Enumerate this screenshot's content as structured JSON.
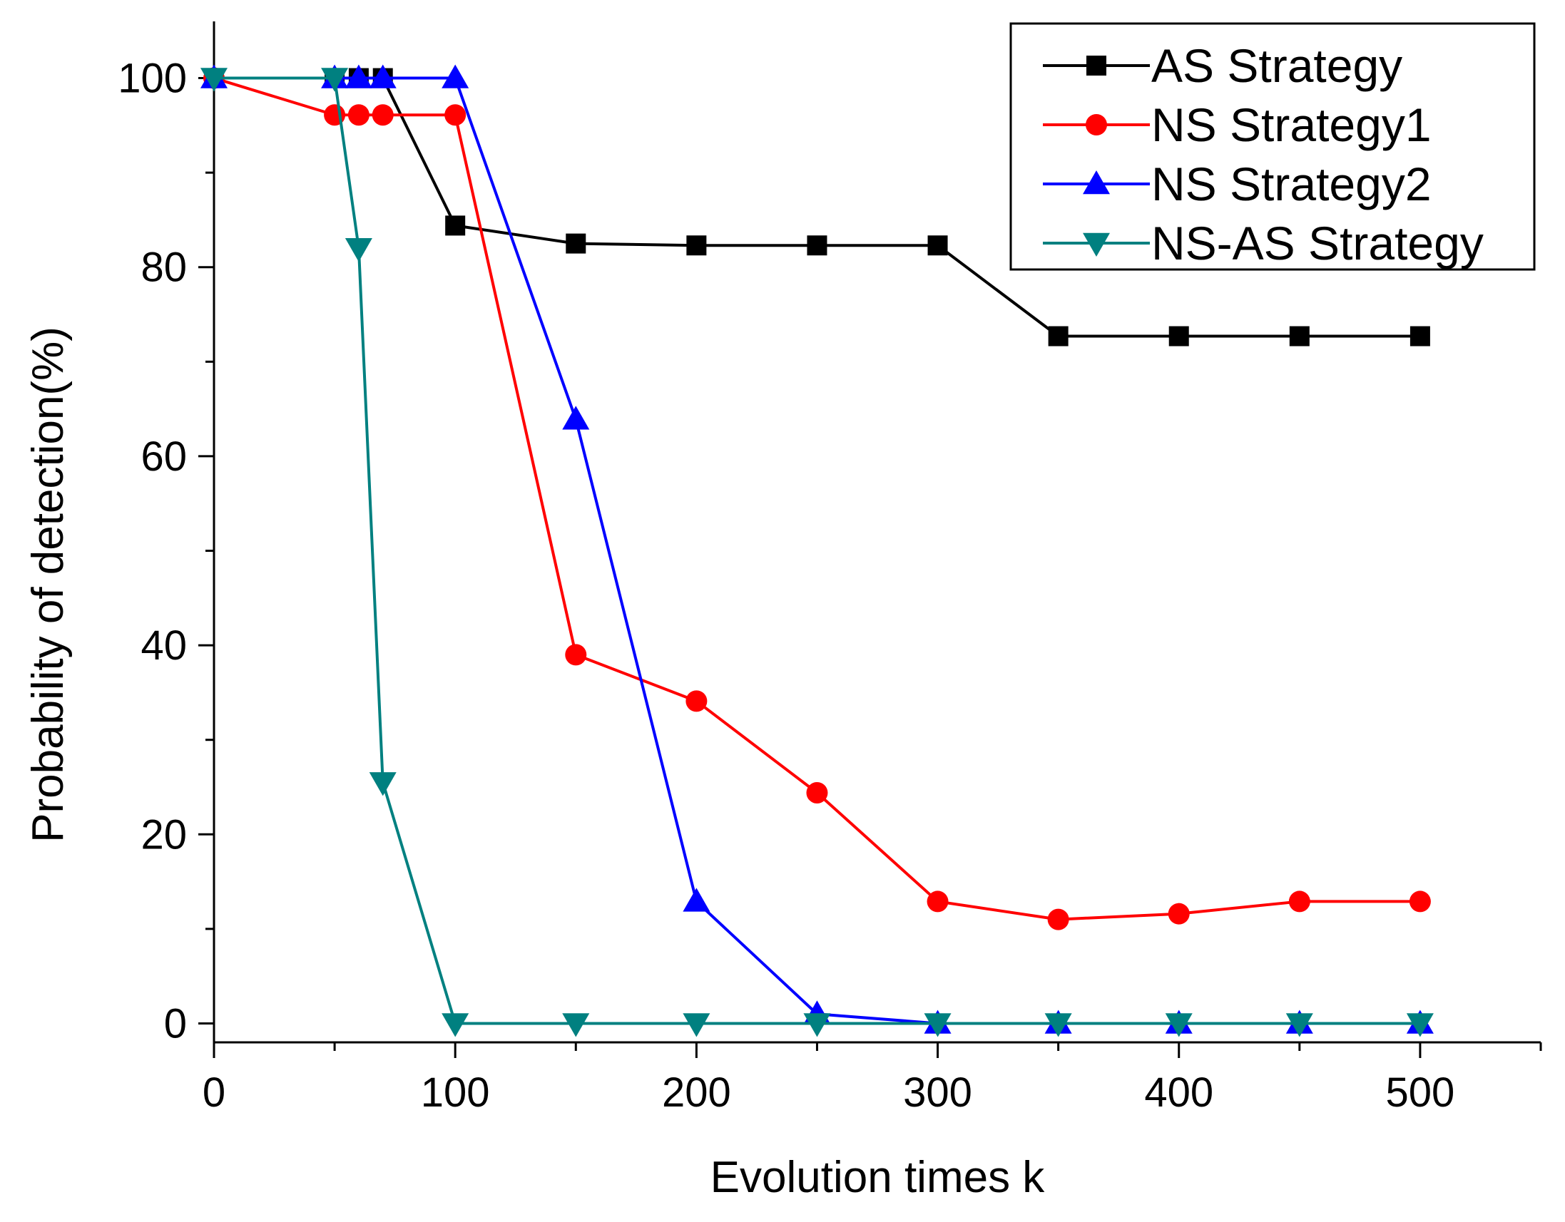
{
  "chart_data": {
    "type": "line",
    "title": "",
    "xlabel": "Evolution times k",
    "ylabel": "Probability of detection(%)",
    "xlim": [
      0,
      550
    ],
    "ylim": [
      -2,
      106
    ],
    "xticks": [
      0,
      100,
      200,
      300,
      400,
      500
    ],
    "yticks": [
      0,
      20,
      40,
      60,
      80,
      100
    ],
    "legend_position": "top-right",
    "series": [
      {
        "name": "AS Strategy",
        "color": "#000000",
        "marker": "square",
        "x": [
          0,
          50,
          60,
          70,
          100,
          150,
          200,
          250,
          300,
          350,
          400,
          450,
          500
        ],
        "y": [
          100,
          100,
          100,
          100,
          84.4,
          82.5,
          82.3,
          82.3,
          82.3,
          72.7,
          72.7,
          72.7,
          72.7
        ]
      },
      {
        "name": "NS Strategy1",
        "color": "#ff0000",
        "marker": "circle",
        "x": [
          0,
          50,
          60,
          70,
          100,
          150,
          200,
          250,
          300,
          350,
          400,
          450,
          500
        ],
        "y": [
          100,
          96.1,
          96.1,
          96.1,
          96.1,
          39.0,
          34.1,
          24.4,
          12.9,
          11.0,
          11.6,
          12.9,
          12.9
        ]
      },
      {
        "name": "NS Strategy2",
        "color": "#0000ff",
        "marker": "triangle-up",
        "x": [
          0,
          50,
          60,
          70,
          100,
          150,
          200,
          250,
          300,
          350,
          400,
          450,
          500
        ],
        "y": [
          100,
          100,
          100,
          100,
          100,
          63.9,
          12.9,
          1.0,
          0,
          0,
          0,
          0,
          0
        ]
      },
      {
        "name": "NS-AS Strategy",
        "color": "#008080",
        "marker": "triangle-down",
        "x": [
          0,
          50,
          60,
          70,
          100,
          150,
          200,
          250,
          300,
          350,
          400,
          450,
          500
        ],
        "y": [
          100,
          100,
          82.0,
          25.5,
          0,
          0,
          0,
          0,
          0,
          0,
          0,
          0,
          0
        ]
      }
    ]
  }
}
